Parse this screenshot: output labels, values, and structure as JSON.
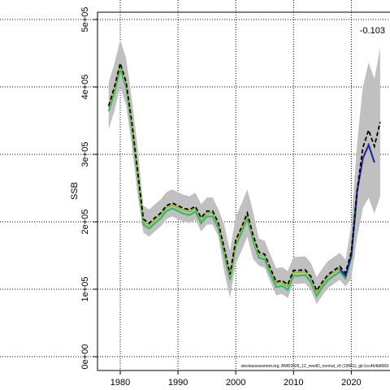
{
  "chart_data": {
    "type": "line",
    "ylabel": "SSB",
    "annotation": "-0.103",
    "footnote": "stockassessment.org, BMD2026_12_newID_normal_v5 (19561), git:1cc464b8069",
    "x": [
      1978,
      1979,
      1980,
      1981,
      1982,
      1983,
      1984,
      1985,
      1986,
      1987,
      1988,
      1989,
      1990,
      1991,
      1992,
      1993,
      1994,
      1995,
      1996,
      1997,
      1998,
      1999,
      2000,
      2001,
      2002,
      2003,
      2004,
      2005,
      2006,
      2007,
      2008,
      2009,
      2010,
      2011,
      2012,
      2013,
      2014,
      2015,
      2016,
      2017,
      2018,
      2019,
      2020,
      2021,
      2022,
      2023,
      2024,
      2025
    ],
    "band_color": "#c0c0c0",
    "band_upper": [
      407000,
      435000,
      470000,
      443000,
      383000,
      311000,
      224000,
      218000,
      226000,
      233000,
      244000,
      248000,
      244000,
      240000,
      238000,
      243000,
      226000,
      236000,
      236000,
      218000,
      196000,
      157000,
      208000,
      227000,
      248000,
      215000,
      175000,
      172000,
      151000,
      131000,
      133000,
      127000,
      148000,
      148000,
      149000,
      139000,
      118000,
      131000,
      142000,
      148000,
      154000,
      144000,
      195000,
      316000,
      400000,
      436000,
      412000,
      458000
    ],
    "band_lower": [
      337000,
      365000,
      400000,
      373000,
      313000,
      241000,
      184000,
      178000,
      186000,
      193000,
      204000,
      208000,
      204000,
      200000,
      198000,
      203000,
      186000,
      196000,
      196000,
      178000,
      126000,
      87000,
      138000,
      157000,
      178000,
      145000,
      135000,
      132000,
      111000,
      91000,
      93000,
      87000,
      108000,
      108000,
      109000,
      99000,
      78000,
      91000,
      102000,
      108000,
      114000,
      104000,
      115000,
      176000,
      220000,
      236000,
      212000,
      238000
    ],
    "series": [
      {
        "color": "#3cb371",
        "values": [
          364000,
          392000,
          427000,
          400000,
          340000,
          268000,
          196000,
          190000,
          198000,
          205000,
          216000,
          220000,
          216000,
          212000,
          210000,
          215000,
          198000,
          208000,
          208000,
          190000,
          153000,
          114000,
          165000,
          184000,
          205000,
          172000,
          147000,
          144000,
          123000,
          103000,
          105000,
          99000,
          120000,
          120000,
          121000,
          111000,
          90000,
          103000,
          114000,
          120000,
          126000,
          116000,
          147000,
          240000,
          null,
          null,
          null,
          null
        ]
      },
      {
        "color": "#8fbc3f",
        "values": [
          370000,
          398000,
          432000,
          405000,
          345000,
          273000,
          201000,
          195000,
          203000,
          210000,
          221000,
          225000,
          221000,
          217000,
          215000,
          220000,
          203000,
          213000,
          213000,
          195000,
          158000,
          119000,
          170000,
          189000,
          210000,
          177000,
          152000,
          149000,
          128000,
          108000,
          110000,
          104000,
          125000,
          125000,
          126000,
          116000,
          95000,
          108000,
          119000,
          125000,
          131000,
          121000,
          150000,
          null,
          null,
          null,
          null,
          null
        ]
      },
      {
        "color": "#2b2b9e",
        "values": [
          null,
          null,
          null,
          null,
          null,
          null,
          null,
          null,
          null,
          null,
          null,
          null,
          null,
          null,
          null,
          null,
          null,
          null,
          null,
          null,
          null,
          null,
          null,
          null,
          null,
          null,
          null,
          null,
          null,
          null,
          null,
          null,
          null,
          null,
          null,
          null,
          null,
          null,
          null,
          null,
          130000,
          120000,
          150000,
          245000,
          294000,
          314000,
          288000,
          null
        ]
      },
      {
        "color": "#000000",
        "dashed": true,
        "values": [
          372000,
          400000,
          435000,
          408000,
          348000,
          276000,
          204000,
          198000,
          206000,
          213000,
          224000,
          228000,
          224000,
          220000,
          218000,
          223000,
          206000,
          216000,
          216000,
          198000,
          161000,
          122000,
          173000,
          192000,
          213000,
          180000,
          155000,
          152000,
          131000,
          111000,
          113000,
          107000,
          128000,
          128000,
          129000,
          119000,
          98000,
          111000,
          122000,
          128000,
          134000,
          124000,
          155000,
          246000,
          310000,
          336000,
          312000,
          348000
        ]
      }
    ],
    "xlim": [
      1976.06,
      2026.7
    ],
    "xticks": [
      1980,
      1990,
      2000,
      2010,
      2020
    ],
    "ylim": [
      -20482,
      510843
    ],
    "yticks": [
      {
        "value": 0,
        "label": "0e+00"
      },
      {
        "value": 100000,
        "label": "1e+05"
      },
      {
        "value": 200000,
        "label": "2e+05"
      },
      {
        "value": 300000,
        "label": "3e+05"
      },
      {
        "value": 400000,
        "label": "4e+05"
      },
      {
        "value": 500000,
        "label": "5e+05"
      }
    ],
    "grid": true
  }
}
